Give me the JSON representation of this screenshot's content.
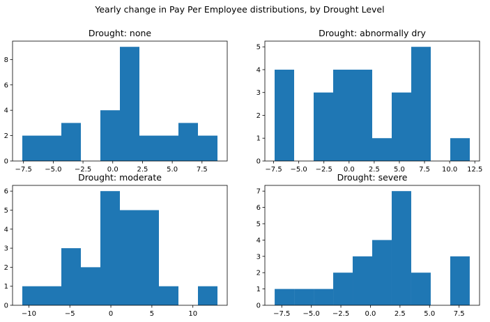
{
  "title": "Yearly change in Pay Per Employee distributions, by Drought Level",
  "colors": {
    "bar": "#1f77b4",
    "axis": "#000000",
    "background": "#ffffff"
  },
  "chart_data": [
    {
      "type": "bar",
      "title": "Drought: none",
      "bin_edges": [
        -7.6,
        -5.96,
        -4.32,
        -2.68,
        -1.04,
        0.6,
        2.24,
        3.88,
        5.52,
        7.16,
        8.8
      ],
      "values": [
        2,
        2,
        3,
        0,
        4,
        9,
        2,
        2,
        3,
        2
      ],
      "xlim": [
        -8.42,
        9.62
      ],
      "ylim": [
        0,
        9.45
      ],
      "xticks": [
        -7.5,
        -5.0,
        -2.5,
        0.0,
        2.5,
        5.0,
        7.5
      ],
      "xtick_labels": [
        "−7.5",
        "−5.0",
        "−2.5",
        "0.0",
        "2.5",
        "5.0",
        "7.5"
      ],
      "yticks": [
        0,
        2,
        4,
        6,
        8
      ],
      "ytick_labels": [
        "0",
        "2",
        "4",
        "6",
        "8"
      ]
    },
    {
      "type": "bar",
      "title": "Drought: abnormally dry",
      "bin_edges": [
        -7.4,
        -5.46,
        -3.52,
        -1.58,
        0.36,
        2.3,
        4.24,
        6.18,
        8.12,
        10.06,
        12.0
      ],
      "values": [
        4,
        0,
        3,
        4,
        4,
        1,
        3,
        5,
        0,
        1
      ],
      "xlim": [
        -8.37,
        12.97
      ],
      "ylim": [
        0,
        5.25
      ],
      "xticks": [
        -7.5,
        -5.0,
        -2.5,
        0.0,
        2.5,
        5.0,
        7.5,
        10.0,
        12.5
      ],
      "xtick_labels": [
        "−7.5",
        "−5.0",
        "−2.5",
        "0.0",
        "2.5",
        "5.0",
        "7.5",
        "10.0",
        "12.5"
      ],
      "yticks": [
        0,
        1,
        2,
        3,
        4,
        5
      ],
      "ytick_labels": [
        "0",
        "1",
        "2",
        "3",
        "4",
        "5"
      ]
    },
    {
      "type": "bar",
      "title": "Drought: moderate",
      "bin_edges": [
        -10.8,
        -8.42,
        -6.04,
        -3.66,
        -1.28,
        1.1,
        3.48,
        5.86,
        8.24,
        10.62,
        13.0
      ],
      "values": [
        1,
        1,
        3,
        2,
        6,
        5,
        5,
        1,
        0,
        1
      ],
      "xlim": [
        -11.99,
        14.19
      ],
      "ylim": [
        0,
        6.3
      ],
      "xticks": [
        -10,
        -5,
        0,
        5,
        10
      ],
      "xtick_labels": [
        "−10",
        "−5",
        "0",
        "5",
        "10"
      ],
      "yticks": [
        0,
        1,
        2,
        3,
        4,
        5,
        6
      ],
      "ytick_labels": [
        "0",
        "1",
        "2",
        "3",
        "4",
        "5",
        "6"
      ]
    },
    {
      "type": "bar",
      "title": "Drought: severe",
      "bin_edges": [
        -8.1,
        -6.45,
        -4.8,
        -3.15,
        -1.5,
        0.15,
        1.8,
        3.45,
        5.1,
        6.75,
        8.4
      ],
      "values": [
        1,
        1,
        1,
        2,
        3,
        4,
        7,
        2,
        0,
        3
      ],
      "xlim": [
        -8.93,
        9.23
      ],
      "ylim": [
        0,
        7.35
      ],
      "xticks": [
        -7.5,
        -5.0,
        -2.5,
        0.0,
        2.5,
        5.0,
        7.5
      ],
      "xtick_labels": [
        "−7.5",
        "−5.0",
        "−2.5",
        "0.0",
        "2.5",
        "5.0",
        "7.5"
      ],
      "yticks": [
        0,
        1,
        2,
        3,
        4,
        5,
        6,
        7
      ],
      "ytick_labels": [
        "0",
        "1",
        "2",
        "3",
        "4",
        "5",
        "6",
        "7"
      ]
    }
  ]
}
